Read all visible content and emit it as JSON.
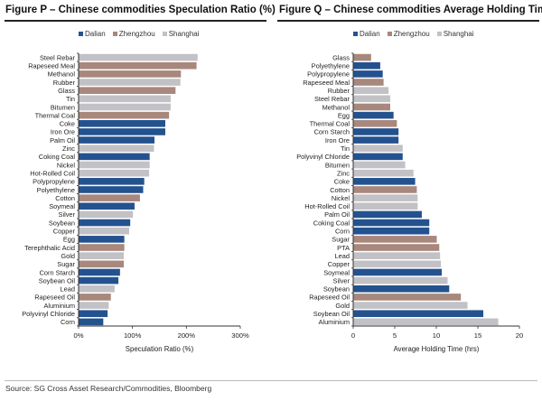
{
  "colors": {
    "Dalian": "#24528f",
    "Zhengzhou": "#a8877c",
    "Shanghai": "#c1c1c6"
  },
  "legend": [
    "Dalian",
    "Zhengzhou",
    "Shanghai"
  ],
  "source": "Source: SG Cross Asset Research/Commodities, Bloomberg",
  "chart_data": [
    {
      "type": "bar",
      "orientation": "horizontal",
      "title": "Figure P – Chinese commodities Speculation Ratio (%)",
      "xlabel": "Speculation Ratio (%)",
      "ylabel": "",
      "xlim": [
        0,
        300
      ],
      "xticks": [
        0,
        100,
        200,
        300
      ],
      "xtick_labels": [
        "0%",
        "100%",
        "200%",
        "300%"
      ],
      "grid": false,
      "legend_position": "top-center",
      "categories": [
        "Steel Rebar",
        "Rapeseed Meal",
        "Methanol",
        "Rubber",
        "Glass",
        "Tin",
        "Bitumen",
        "Thermal Coal",
        "Coke",
        "Iron Ore",
        "Palm Oil",
        "Zinc",
        "Coking Coal",
        "Nickel",
        "Hot-Rolled Coil",
        "Polypropylene",
        "Polyethylene",
        "Cotton",
        "Soymeal",
        "Silver",
        "Soybean",
        "Copper",
        "Egg",
        "Terephthalic Acid",
        "Gold",
        "Sugar",
        "Corn Starch",
        "Soybean Oil",
        "Lead",
        "Rapeseed Oil",
        "Aluminium",
        "Polyvinyl Chloride",
        "Corn"
      ],
      "exchange": [
        "Shanghai",
        "Zhengzhou",
        "Zhengzhou",
        "Shanghai",
        "Zhengzhou",
        "Shanghai",
        "Shanghai",
        "Zhengzhou",
        "Dalian",
        "Dalian",
        "Dalian",
        "Shanghai",
        "Dalian",
        "Shanghai",
        "Shanghai",
        "Dalian",
        "Dalian",
        "Zhengzhou",
        "Dalian",
        "Shanghai",
        "Dalian",
        "Shanghai",
        "Dalian",
        "Zhengzhou",
        "Shanghai",
        "Zhengzhou",
        "Dalian",
        "Dalian",
        "Shanghai",
        "Zhengzhou",
        "Shanghai",
        "Dalian",
        "Dalian"
      ],
      "values": [
        220,
        218,
        189,
        188,
        179,
        170,
        170,
        167,
        160,
        160,
        140,
        139,
        131,
        131,
        130,
        121,
        119,
        113,
        103,
        100,
        95,
        93,
        84,
        84,
        83,
        83,
        76,
        73,
        66,
        59,
        55,
        53,
        45
      ]
    },
    {
      "type": "bar",
      "orientation": "horizontal",
      "title": "Figure Q – Chinese commodities Average Holding Time (hrs)",
      "xlabel": "Average Holding Time (hrs)",
      "ylabel": "",
      "xlim": [
        0,
        20
      ],
      "xticks": [
        0,
        5,
        10,
        15,
        20
      ],
      "xtick_labels": [
        "0",
        "5",
        "10",
        "15",
        "20"
      ],
      "grid": false,
      "legend_position": "top-center",
      "categories": [
        "Glass",
        "Polyethylene",
        "Polypropylene",
        "Rapeseed Meal",
        "Rubber",
        "Steel Rebar",
        "Methanol",
        "Egg",
        "Thermal Coal",
        "Corn Starch",
        "Iron Ore",
        "Tin",
        "Polyvinyl Chloride",
        "Bitumen",
        "Zinc",
        "Coke",
        "Cotton",
        "Nickel",
        "Hot-Rolled Coil",
        "Palm Oil",
        "Coking Coal",
        "Corn",
        "Sugar",
        "PTA",
        "Lead",
        "Copper",
        "Soymeal",
        "Silver",
        "Soybean",
        "Rapeseed Oil",
        "Gold",
        "Soybean Oil",
        "Aluminium"
      ],
      "exchange": [
        "Zhengzhou",
        "Dalian",
        "Dalian",
        "Zhengzhou",
        "Shanghai",
        "Shanghai",
        "Zhengzhou",
        "Dalian",
        "Zhengzhou",
        "Dalian",
        "Dalian",
        "Shanghai",
        "Dalian",
        "Shanghai",
        "Shanghai",
        "Dalian",
        "Zhengzhou",
        "Shanghai",
        "Shanghai",
        "Dalian",
        "Dalian",
        "Dalian",
        "Zhengzhou",
        "Zhengzhou",
        "Shanghai",
        "Shanghai",
        "Dalian",
        "Shanghai",
        "Dalian",
        "Zhengzhou",
        "Shanghai",
        "Dalian",
        "Shanghai"
      ],
      "values": [
        2.1,
        3.2,
        3.5,
        3.6,
        4.2,
        4.4,
        4.4,
        4.8,
        5.2,
        5.4,
        5.4,
        5.9,
        5.9,
        6.2,
        7.2,
        7.4,
        7.6,
        7.7,
        7.7,
        8.2,
        9.1,
        9.1,
        10.0,
        10.3,
        10.4,
        10.5,
        10.6,
        11.3,
        11.5,
        12.9,
        13.7,
        15.6,
        17.4
      ]
    }
  ]
}
